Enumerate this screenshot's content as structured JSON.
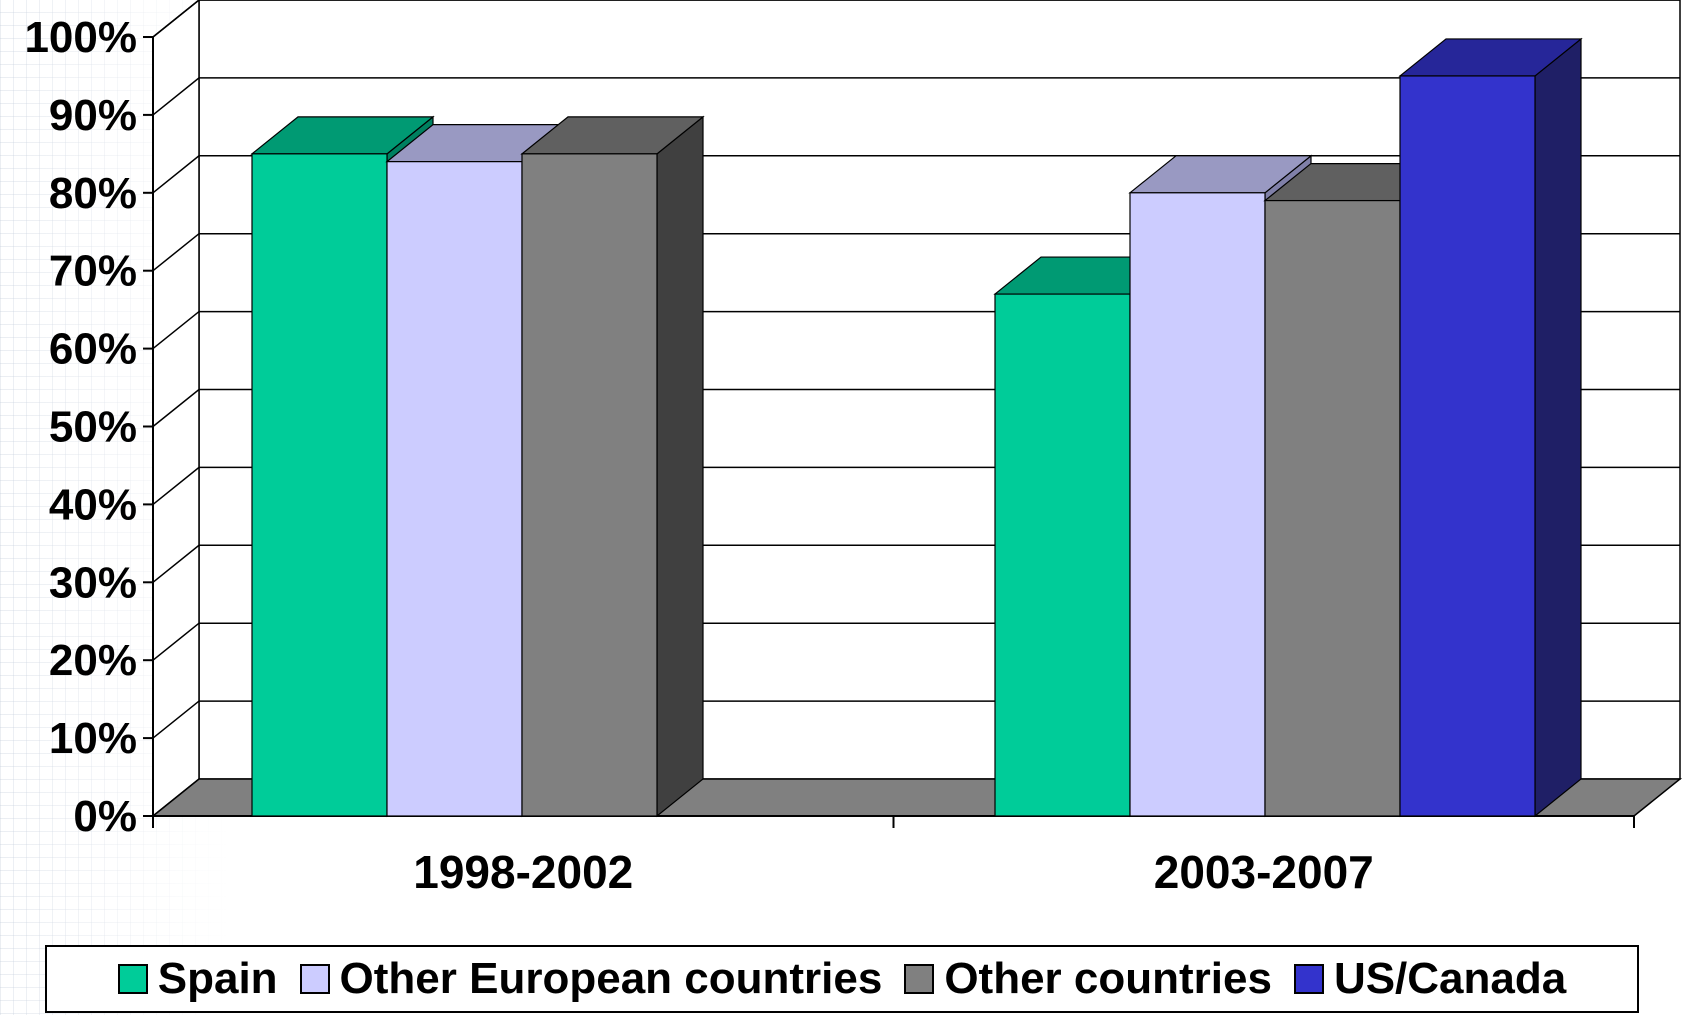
{
  "chart_data": {
    "type": "bar",
    "style": "3d-clustered",
    "categories": [
      "1998-2002",
      "2003-2007"
    ],
    "series": [
      {
        "name": "Spain",
        "values": [
          85,
          67
        ],
        "color": "#00CC99",
        "top_color": "#009A73",
        "side_color": "#008060"
      },
      {
        "name": "Other European countries",
        "values": [
          84,
          80
        ],
        "color": "#CCCCFF",
        "top_color": "#9999C2",
        "side_color": "#8080A8"
      },
      {
        "name": "Other countries",
        "values": [
          85,
          79
        ],
        "color": "#808080",
        "top_color": "#606060",
        "side_color": "#404040"
      },
      {
        "name": "US/Canada",
        "values": [
          null,
          95
        ],
        "color": "#3333CC",
        "top_color": "#262699",
        "side_color": "#1F1F66"
      }
    ],
    "yticks": [
      "0%",
      "10%",
      "20%",
      "30%",
      "40%",
      "50%",
      "60%",
      "70%",
      "80%",
      "90%",
      "100%"
    ],
    "ylim": [
      0,
      100
    ],
    "grid": true,
    "floor_color": "#808080",
    "legend_position": "bottom",
    "title": "",
    "xlabel": "",
    "ylabel": ""
  }
}
